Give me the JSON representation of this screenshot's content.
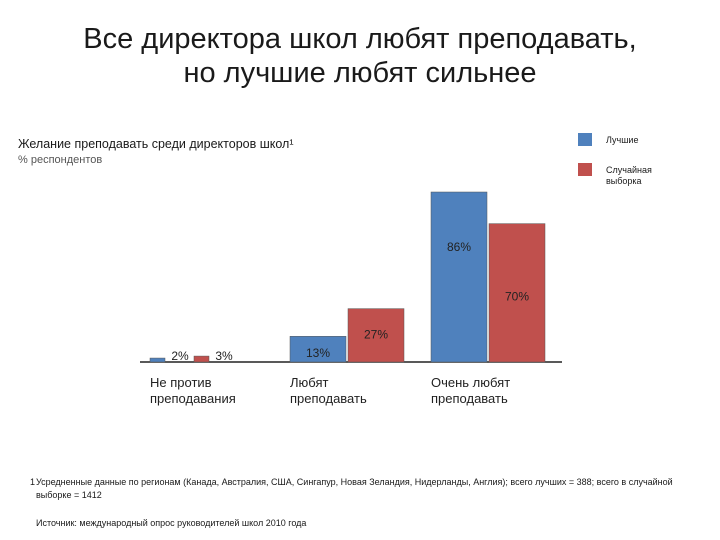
{
  "title_line1": "Все директора школ любят преподавать,",
  "title_line2": "но лучшие любят сильнее",
  "footnote_number": "1",
  "footnote": "Усредненные данные по регионам (Канада, Австралия, США, Сингапур, Новая Зеландия, Нидерланды, Англия); всего лучших = 388; всего в случайной выборке = 1412",
  "source": "Источник: международный опрос руководителей школ 2010 года",
  "colors": {
    "best": "#4f81bd",
    "random": "#c0504d"
  },
  "chart_data": {
    "type": "bar",
    "title": "Желание преподавать среди директоров школ¹",
    "ylabel": "% респондентов",
    "categories": [
      [
        "Не против",
        "преподавания"
      ],
      [
        "Любят",
        "преподавать"
      ],
      [
        "Очень любят",
        "преподавать"
      ]
    ],
    "series": [
      {
        "name": "Лучшие",
        "values": [
          2,
          13,
          86
        ],
        "labels": [
          "2%",
          "13%",
          "86%"
        ]
      },
      {
        "name": "Случайная выборка",
        "values": [
          3,
          27,
          70
        ],
        "labels": [
          "3%",
          "27%",
          "70%"
        ]
      }
    ],
    "ylim": [
      0,
      100
    ],
    "legend": "top-right",
    "grid": false
  }
}
